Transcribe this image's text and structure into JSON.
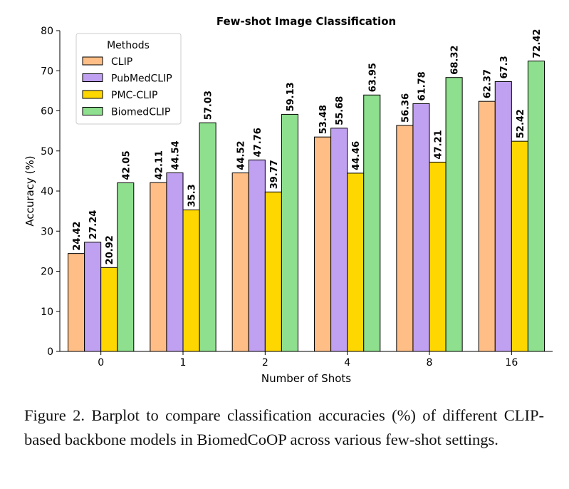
{
  "chart_data": {
    "type": "bar",
    "title": "Few-shot Image Classification",
    "xlabel": "Number of Shots",
    "ylabel": "Accuracy (%)",
    "categories": [
      "0",
      "1",
      "2",
      "4",
      "8",
      "16"
    ],
    "ylim": [
      0,
      80
    ],
    "yticks": [
      "0",
      "10",
      "20",
      "30",
      "40",
      "50",
      "60",
      "70",
      "80"
    ],
    "legend": {
      "title": "Methods",
      "position": "top-left"
    },
    "series": [
      {
        "name": "CLIP",
        "color": "#ffbe86",
        "values": [
          24.42,
          42.11,
          44.52,
          53.48,
          56.36,
          62.37
        ],
        "labels": [
          "24.42",
          "42.11",
          "44.52",
          "53.48",
          "56.36",
          "62.37"
        ]
      },
      {
        "name": "PubMedCLIP",
        "color": "#c0a0f0",
        "values": [
          27.24,
          44.54,
          47.76,
          55.68,
          61.78,
          67.3
        ],
        "labels": [
          "27.24",
          "44.54",
          "47.76",
          "55.68",
          "61.78",
          "67.3"
        ]
      },
      {
        "name": "PMC-CLIP",
        "color": "#ffd700",
        "values": [
          20.92,
          35.3,
          39.77,
          44.46,
          47.21,
          52.42
        ],
        "labels": [
          "20.92",
          "35.3",
          "39.77",
          "44.46",
          "47.21",
          "52.42"
        ]
      },
      {
        "name": "BiomedCLIP",
        "color": "#8edf8e",
        "values": [
          42.05,
          57.03,
          59.13,
          63.95,
          68.32,
          72.42
        ],
        "labels": [
          "42.05",
          "57.03",
          "59.13",
          "63.95",
          "68.32",
          "72.42"
        ]
      }
    ]
  },
  "caption": "Figure 2. Barplot to compare classification accuracies (%) of different CLIP-based backbone models in BiomedCoOP across various few-shot settings."
}
